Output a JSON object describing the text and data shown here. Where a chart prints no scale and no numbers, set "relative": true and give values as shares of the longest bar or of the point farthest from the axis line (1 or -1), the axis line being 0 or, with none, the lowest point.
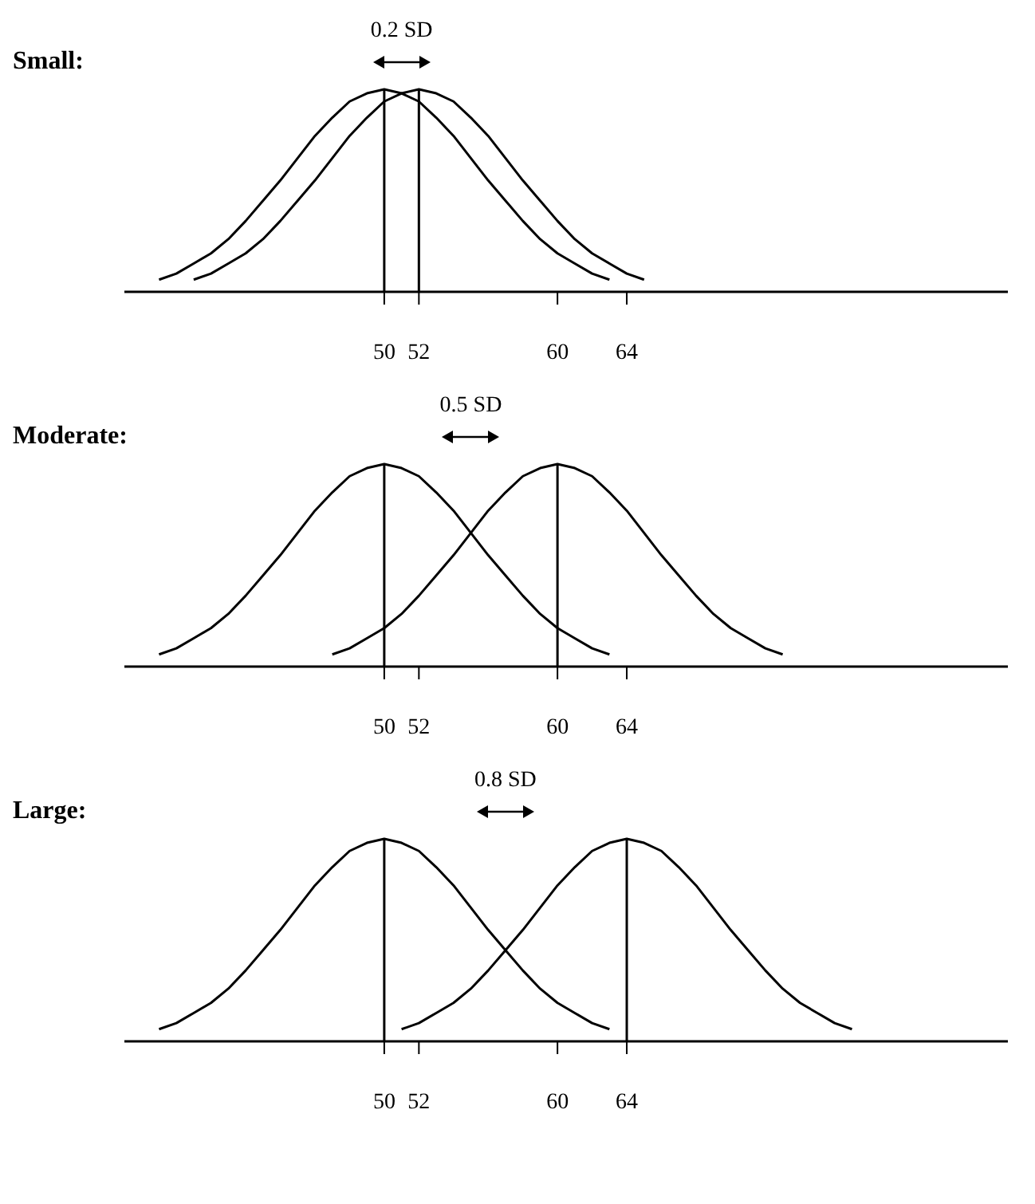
{
  "chart_data": [
    {
      "type": "line",
      "title": "Small:",
      "relative": true,
      "xlim": [
        35,
        86
      ],
      "xticks": [
        50,
        52,
        60,
        64
      ],
      "tick_labels": "x",
      "grid": false,
      "legend": false,
      "marker": "none",
      "line_style": "solid",
      "annotations": [
        "0.2 SD"
      ],
      "ref_lines": [
        {
          "axis": "x",
          "value": 50,
          "color": "#000000"
        },
        {
          "axis": "x",
          "value": 52,
          "color": "#000000"
        }
      ],
      "series": [
        {
          "color": "#000000",
          "x": [
            37,
            38,
            39,
            40,
            41,
            42,
            43,
            44,
            45,
            46,
            47,
            48,
            49,
            50,
            51,
            52,
            53,
            54,
            55,
            56,
            57,
            58,
            59,
            60,
            61,
            62,
            63
          ],
          "values": [
            0.06,
            0.09,
            0.14,
            0.19,
            0.26,
            0.35,
            0.45,
            0.55,
            0.66,
            0.77,
            0.86,
            0.94,
            0.98,
            1,
            0.98,
            0.94,
            0.86,
            0.77,
            0.66,
            0.55,
            0.45,
            0.35,
            0.26,
            0.19,
            0.14,
            0.09,
            0.06
          ]
        },
        {
          "color": "#000000",
          "x": [
            39,
            40,
            41,
            42,
            43,
            44,
            45,
            46,
            47,
            48,
            49,
            50,
            51,
            52,
            53,
            54,
            55,
            56,
            57,
            58,
            59,
            60,
            61,
            62,
            63,
            64,
            65
          ],
          "values": [
            0.06,
            0.09,
            0.14,
            0.19,
            0.26,
            0.35,
            0.45,
            0.55,
            0.66,
            0.77,
            0.86,
            0.94,
            0.98,
            1,
            0.98,
            0.94,
            0.86,
            0.77,
            0.66,
            0.55,
            0.45,
            0.35,
            0.26,
            0.19,
            0.14,
            0.09,
            0.06
          ]
        }
      ]
    },
    {
      "type": "line",
      "title": "Moderate:",
      "relative": true,
      "xlim": [
        35,
        86
      ],
      "xticks": [
        50,
        52,
        60,
        64
      ],
      "tick_labels": "x",
      "grid": false,
      "legend": false,
      "marker": "none",
      "line_style": "solid",
      "annotations": [
        "0.5 SD"
      ],
      "ref_lines": [
        {
          "axis": "x",
          "value": 50,
          "color": "#000000"
        },
        {
          "axis": "x",
          "value": 60,
          "color": "#000000"
        }
      ],
      "series": [
        {
          "color": "#000000",
          "x": [
            37,
            38,
            39,
            40,
            41,
            42,
            43,
            44,
            45,
            46,
            47,
            48,
            49,
            50,
            51,
            52,
            53,
            54,
            55,
            56,
            57,
            58,
            59,
            60,
            61,
            62,
            63
          ],
          "values": [
            0.06,
            0.09,
            0.14,
            0.19,
            0.26,
            0.35,
            0.45,
            0.55,
            0.66,
            0.77,
            0.86,
            0.94,
            0.98,
            1,
            0.98,
            0.94,
            0.86,
            0.77,
            0.66,
            0.55,
            0.45,
            0.35,
            0.26,
            0.19,
            0.14,
            0.09,
            0.06
          ]
        },
        {
          "color": "#000000",
          "x": [
            47,
            48,
            49,
            50,
            51,
            52,
            53,
            54,
            55,
            56,
            57,
            58,
            59,
            60,
            61,
            62,
            63,
            64,
            65,
            66,
            67,
            68,
            69,
            70,
            71,
            72,
            73
          ],
          "values": [
            0.06,
            0.09,
            0.14,
            0.19,
            0.26,
            0.35,
            0.45,
            0.55,
            0.66,
            0.77,
            0.86,
            0.94,
            0.98,
            1,
            0.98,
            0.94,
            0.86,
            0.77,
            0.66,
            0.55,
            0.45,
            0.35,
            0.26,
            0.19,
            0.14,
            0.09,
            0.06
          ]
        }
      ]
    },
    {
      "type": "line",
      "title": "Large:",
      "relative": true,
      "xlim": [
        35,
        86
      ],
      "xticks": [
        50,
        52,
        60,
        64
      ],
      "tick_labels": "x",
      "grid": false,
      "legend": false,
      "marker": "none",
      "line_style": "solid",
      "annotations": [
        "0.8 SD"
      ],
      "ref_lines": [
        {
          "axis": "x",
          "value": 50,
          "color": "#000000"
        },
        {
          "axis": "x",
          "value": 64,
          "color": "#000000"
        }
      ],
      "series": [
        {
          "color": "#000000",
          "x": [
            37,
            38,
            39,
            40,
            41,
            42,
            43,
            44,
            45,
            46,
            47,
            48,
            49,
            50,
            51,
            52,
            53,
            54,
            55,
            56,
            57,
            58,
            59,
            60,
            61,
            62,
            63
          ],
          "values": [
            0.06,
            0.09,
            0.14,
            0.19,
            0.26,
            0.35,
            0.45,
            0.55,
            0.66,
            0.77,
            0.86,
            0.94,
            0.98,
            1,
            0.98,
            0.94,
            0.86,
            0.77,
            0.66,
            0.55,
            0.45,
            0.35,
            0.26,
            0.19,
            0.14,
            0.09,
            0.06
          ]
        },
        {
          "color": "#000000",
          "x": [
            51,
            52,
            53,
            54,
            55,
            56,
            57,
            58,
            59,
            60,
            61,
            62,
            63,
            64,
            65,
            66,
            67,
            68,
            69,
            70,
            71,
            72,
            73,
            74,
            75,
            76,
            77
          ],
          "values": [
            0.06,
            0.09,
            0.14,
            0.19,
            0.26,
            0.35,
            0.45,
            0.55,
            0.66,
            0.77,
            0.86,
            0.94,
            0.98,
            1,
            0.98,
            0.94,
            0.86,
            0.77,
            0.66,
            0.55,
            0.45,
            0.35,
            0.26,
            0.19,
            0.14,
            0.09,
            0.06
          ]
        }
      ]
    }
  ]
}
